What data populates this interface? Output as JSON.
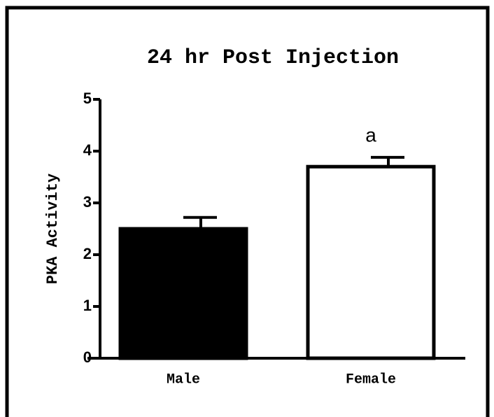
{
  "chart_data": {
    "type": "bar",
    "title": "24 hr Post Injection",
    "ylabel": "PKA Activity",
    "categories": [
      "Male",
      "Female"
    ],
    "values": [
      2.5,
      3.7
    ],
    "errors": [
      0.22,
      0.18
    ],
    "colors": [
      "#000000",
      "#ffffff"
    ],
    "annotations": [
      "",
      "a"
    ],
    "ylim": [
      0,
      5
    ],
    "yticks": [
      0,
      1,
      2,
      3,
      4,
      5
    ],
    "grid": false
  }
}
